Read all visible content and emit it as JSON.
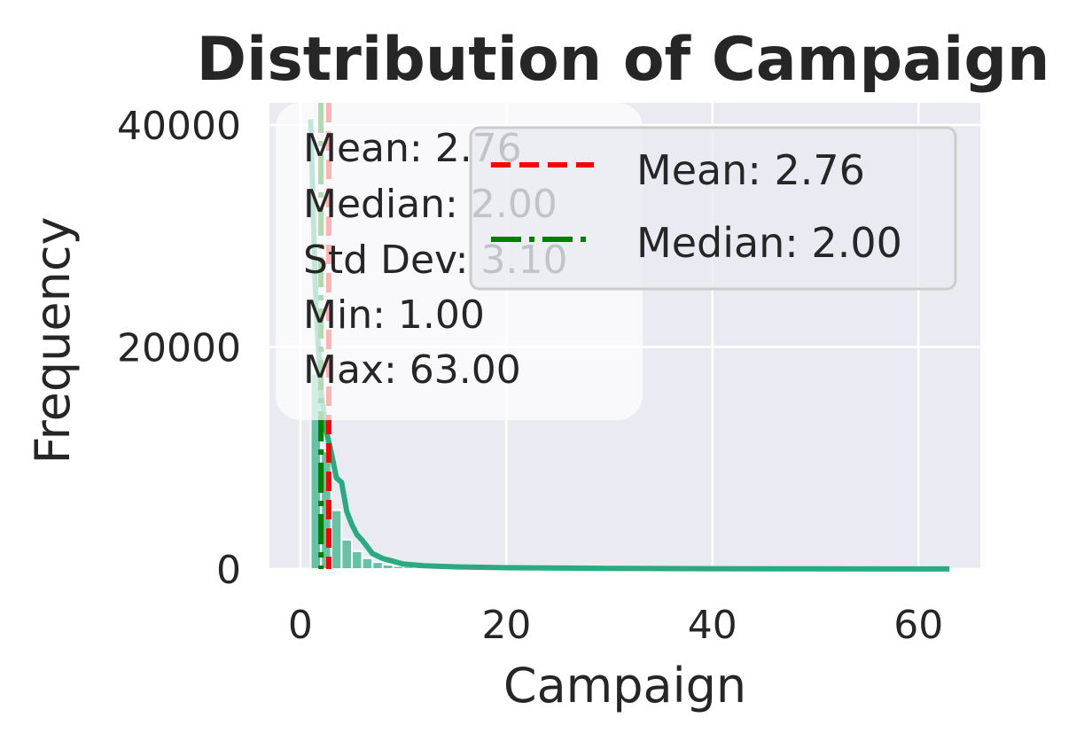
{
  "chart_data": {
    "type": "bar",
    "title": "Distribution of Campaign",
    "xlabel": "Campaign",
    "ylabel": "Frequency",
    "xlim": [
      -3,
      66
    ],
    "ylim": [
      0,
      42000
    ],
    "xticks": [
      0,
      20,
      40,
      60
    ],
    "yticks": [
      0,
      20000,
      40000
    ],
    "grid": true,
    "bar_color": "#66c2a5",
    "kde_color": "#2aaa80",
    "bins": [
      {
        "x0": 1.0,
        "x1": 2.0,
        "count": 17600
      },
      {
        "x0": 2.0,
        "x1": 3.0,
        "count": 10600
      },
      {
        "x0": 3.0,
        "x1": 4.0,
        "count": 5300
      },
      {
        "x0": 4.0,
        "x1": 5.0,
        "count": 2650
      },
      {
        "x0": 5.0,
        "x1": 6.0,
        "count": 1600
      },
      {
        "x0": 6.0,
        "x1": 7.0,
        "count": 980
      },
      {
        "x0": 7.0,
        "x1": 8.0,
        "count": 630
      },
      {
        "x0": 8.0,
        "x1": 9.0,
        "count": 400
      },
      {
        "x0": 9.0,
        "x1": 10.0,
        "count": 280
      },
      {
        "x0": 10.0,
        "x1": 11.0,
        "count": 225
      },
      {
        "x0": 11.0,
        "x1": 12.0,
        "count": 177
      },
      {
        "x0": 12.0,
        "x1": 13.0,
        "count": 125
      },
      {
        "x0": 13.0,
        "x1": 14.0,
        "count": 92
      },
      {
        "x0": 14.0,
        "x1": 15.0,
        "count": 69
      },
      {
        "x0": 15.0,
        "x1": 16.0,
        "count": 51
      },
      {
        "x0": 16.0,
        "x1": 17.0,
        "count": 58
      },
      {
        "x0": 17.0,
        "x1": 18.0,
        "count": 33
      },
      {
        "x0": 18.0,
        "x1": 19.0,
        "count": 28
      },
      {
        "x0": 19.0,
        "x1": 20.0,
        "count": 26
      },
      {
        "x0": 20.0,
        "x1": 22.0,
        "count": 30
      },
      {
        "x0": 22.0,
        "x1": 25.0,
        "count": 24
      },
      {
        "x0": 25.0,
        "x1": 30.0,
        "count": 22
      },
      {
        "x0": 30.0,
        "x1": 40.0,
        "count": 15
      },
      {
        "x0": 40.0,
        "x1": 63.0,
        "count": 8
      }
    ],
    "kde": {
      "x": [
        1.0,
        1.5,
        2.0,
        2.5,
        3.0,
        3.5,
        4.0,
        4.5,
        5.0,
        5.5,
        6.0,
        7.0,
        8.0,
        9.0,
        10.0,
        12.0,
        15.0,
        20.0,
        30.0,
        40.0,
        50.0,
        63.0
      ],
      "y": [
        40500,
        24000,
        16000,
        12500,
        10500,
        8200,
        7800,
        5200,
        4000,
        3100,
        2600,
        1400,
        950,
        700,
        450,
        300,
        200,
        120,
        60,
        30,
        15,
        5
      ]
    },
    "mean_line": {
      "x": 2.76,
      "color": "#ff0000",
      "style": "dashed"
    },
    "median_line": {
      "x": 2.0,
      "color": "#008000",
      "style": "dashdot"
    },
    "stats_box": {
      "lines": [
        "Mean: 2.76",
        "Median: 2.00",
        "Std Dev: 3.10",
        "Min: 1.00",
        "Max: 63.00"
      ]
    },
    "legend": {
      "placement": "top-right",
      "entries": [
        {
          "label": "Mean: 2.76",
          "color": "#ff0000",
          "style": "dashed"
        },
        {
          "label": "Median: 2.00",
          "color": "#008000",
          "style": "dashdot"
        }
      ]
    }
  }
}
